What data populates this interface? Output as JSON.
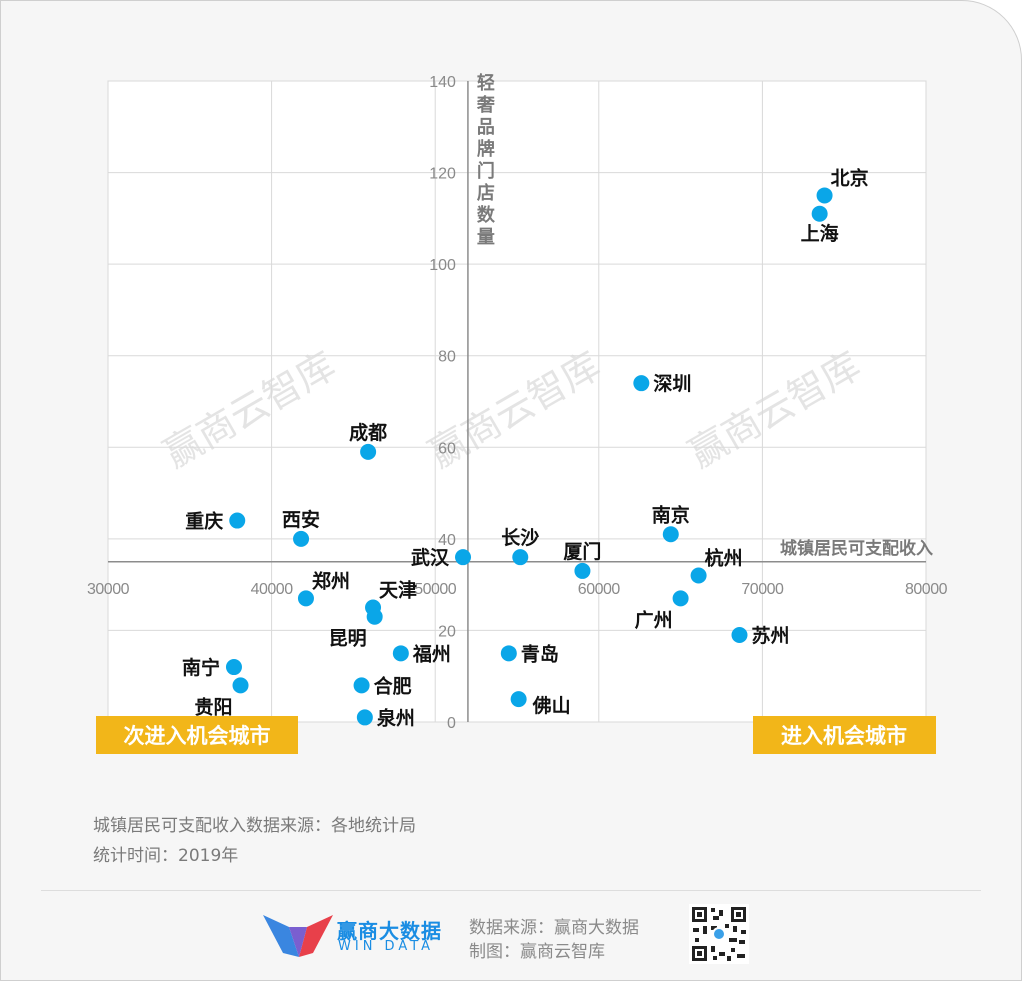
{
  "chart_data": {
    "type": "scatter",
    "xlabel": "城镇居民可支配收入",
    "ylabel": "轻奢品牌门店数量",
    "xlim": [
      30000,
      80000
    ],
    "ylim": [
      0,
      140
    ],
    "x_axis_crosses_y": 35,
    "y_axis_crosses_x": 52000,
    "xticks": [
      30000,
      40000,
      50000,
      60000,
      70000,
      80000
    ],
    "yticks": [
      0,
      20,
      40,
      60,
      80,
      100,
      120,
      140
    ],
    "grid": true,
    "point_color": "#0aa6e8",
    "points": [
      {
        "name": "北京",
        "x": 73800,
        "y": 115,
        "label_pos": "above-right"
      },
      {
        "name": "上海",
        "x": 73500,
        "y": 111,
        "label_pos": "below"
      },
      {
        "name": "深圳",
        "x": 62600,
        "y": 74,
        "label_pos": "right"
      },
      {
        "name": "成都",
        "x": 45900,
        "y": 59,
        "label_pos": "above"
      },
      {
        "name": "重庆",
        "x": 37900,
        "y": 44,
        "label_pos": "left"
      },
      {
        "name": "西安",
        "x": 41800,
        "y": 40,
        "label_pos": "above"
      },
      {
        "name": "南京",
        "x": 64400,
        "y": 41,
        "label_pos": "above"
      },
      {
        "name": "武汉",
        "x": 51700,
        "y": 36,
        "label_pos": "left"
      },
      {
        "name": "长沙",
        "x": 55200,
        "y": 36,
        "label_pos": "above"
      },
      {
        "name": "厦门",
        "x": 59000,
        "y": 33,
        "label_pos": "above"
      },
      {
        "name": "杭州",
        "x": 66100,
        "y": 32,
        "label_pos": "above-right"
      },
      {
        "name": "广州",
        "x": 65000,
        "y": 27,
        "label_pos": "below-left"
      },
      {
        "name": "郑州",
        "x": 42100,
        "y": 27,
        "label_pos": "above-right"
      },
      {
        "name": "天津",
        "x": 46200,
        "y": 25,
        "label_pos": "above-right"
      },
      {
        "name": "昆明",
        "x": 46300,
        "y": 23,
        "label_pos": "below-left"
      },
      {
        "name": "苏州",
        "x": 68600,
        "y": 19,
        "label_pos": "right"
      },
      {
        "name": "福州",
        "x": 47900,
        "y": 15,
        "label_pos": "right"
      },
      {
        "name": "青岛",
        "x": 54500,
        "y": 15,
        "label_pos": "right"
      },
      {
        "name": "南宁",
        "x": 37700,
        "y": 12,
        "label_pos": "left"
      },
      {
        "name": "合肥",
        "x": 45500,
        "y": 8,
        "label_pos": "right"
      },
      {
        "name": "贵阳",
        "x": 38100,
        "y": 8,
        "label_pos": "below-left"
      },
      {
        "name": "佛山",
        "x": 55100,
        "y": 5,
        "label_pos": "below-right"
      },
      {
        "name": "泉州",
        "x": 45700,
        "y": 1,
        "label_pos": "right"
      }
    ]
  },
  "zones": {
    "left_label": "次进入机会城市",
    "right_label": "进入机会城市",
    "color": "#f2b619"
  },
  "watermark": "赢商云智库",
  "notes": {
    "line1": "城镇居民可支配收入数据来源：各地统计局",
    "line2": "统计时间：2019年"
  },
  "footer": {
    "brand_name": "赢商大数据",
    "brand_en": "WIN DATA",
    "source": "数据来源：赢商大数据",
    "maker": "制图：赢商云智库"
  }
}
